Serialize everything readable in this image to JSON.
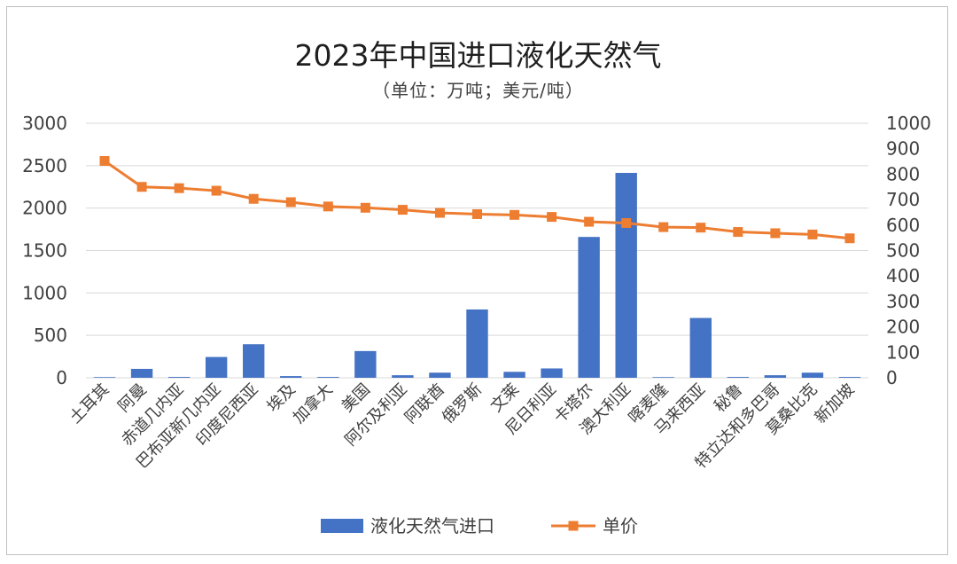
{
  "chart_data": {
    "type": "bar",
    "title": "2023年中国进口液化天然气",
    "subtitle": "（单位：万吨；美元/吨）",
    "categories": [
      "土耳其",
      "阿曼",
      "赤道几内亚",
      "巴布亚新几内亚",
      "印度尼西亚",
      "埃及",
      "加拿大",
      "美国",
      "阿尔及利亚",
      "阿联酋",
      "俄罗斯",
      "文莱",
      "尼日利亚",
      "卡塔尔",
      "澳大利亚",
      "喀麦隆",
      "马来西亚",
      "秘鲁",
      "特立达和多巴哥",
      "莫桑比克",
      "新加坡"
    ],
    "series": [
      {
        "name": "液化天然气进口",
        "type": "bar",
        "axis": "left",
        "color": "#4472c4",
        "values": [
          8,
          105,
          10,
          245,
          395,
          20,
          10,
          315,
          30,
          60,
          805,
          70,
          110,
          1660,
          2415,
          8,
          705,
          10,
          30,
          60,
          10
        ]
      },
      {
        "name": "单价",
        "type": "line",
        "axis": "right",
        "color": "#ed7d31",
        "values": [
          852,
          750,
          745,
          735,
          703,
          690,
          673,
          668,
          660,
          648,
          643,
          640,
          632,
          613,
          608,
          592,
          590,
          573,
          568,
          563,
          548
        ]
      }
    ],
    "y_left": {
      "min": 0,
      "max": 3000,
      "ticks": [
        0,
        500,
        1000,
        1500,
        2000,
        2500,
        3000
      ]
    },
    "y_right": {
      "min": 0,
      "max": 1000,
      "ticks": [
        0,
        100,
        200,
        300,
        400,
        500,
        600,
        700,
        800,
        900,
        1000
      ]
    },
    "grid": true,
    "legend_position": "bottom"
  }
}
